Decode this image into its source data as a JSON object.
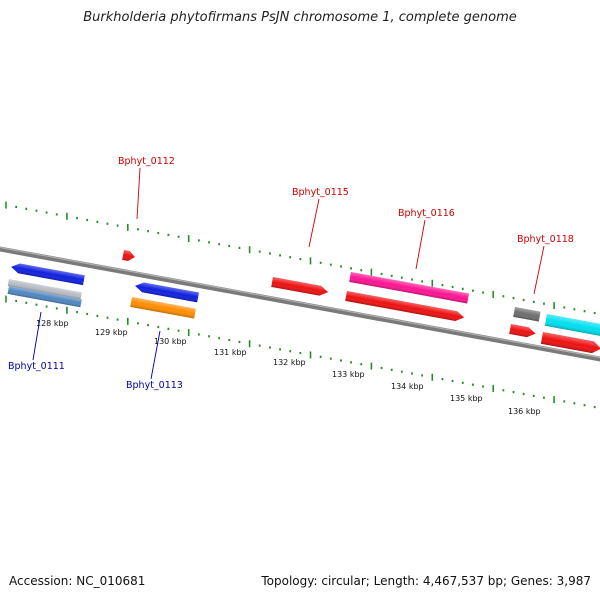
{
  "title": "Burkholderia phytofirmans PsJN chromosome 1, complete genome",
  "footer": {
    "accession": "Accession: NC_010681",
    "topology": "Topology: circular; Length: 4,467,537 bp; Genes: 3,987"
  },
  "colors": {
    "backbone": "#7a7a7a",
    "tick": "#2a8a2a",
    "label_top": "#cc0000",
    "label_bottom": "#0000aa"
  },
  "scale": {
    "labels": [
      "128 kbp",
      "129 kbp",
      "130 kbp",
      "131 kbp",
      "132 kbp",
      "133 kbp",
      "134 kbp",
      "135 kbp",
      "136 kbp"
    ]
  },
  "gene_labels": [
    {
      "text": "Bphyt_0112",
      "strand": "top",
      "color": "#cc0000"
    },
    {
      "text": "Bphyt_0115",
      "strand": "top",
      "color": "#cc0000"
    },
    {
      "text": "Bphyt_0116",
      "strand": "top",
      "color": "#cc0000"
    },
    {
      "text": "Bphyt_0118",
      "strand": "top",
      "color": "#cc0000"
    },
    {
      "text": "Bphyt_0111",
      "strand": "bottom",
      "color": "#0000aa"
    },
    {
      "text": "Bphyt_0113",
      "strand": "bottom",
      "color": "#0000aa"
    }
  ],
  "features": [
    {
      "name": "gene-0111-blue",
      "color": "#1020e0",
      "dir": "left"
    },
    {
      "name": "gene-0111-gray",
      "color": "#b8bcc4",
      "dir": "none"
    },
    {
      "name": "gene-0111-steel",
      "color": "#4f86c0",
      "dir": "none"
    },
    {
      "name": "gene-0112-red",
      "color": "#ee1111",
      "dir": "right"
    },
    {
      "name": "gene-0113-blue",
      "color": "#1020e0",
      "dir": "left"
    },
    {
      "name": "gene-0113-orange",
      "color": "#ff8c00",
      "dir": "none"
    },
    {
      "name": "gene-0115-red",
      "color": "#ee1111",
      "dir": "right"
    },
    {
      "name": "gene-0116-magenta",
      "color": "#ff1493",
      "dir": "none"
    },
    {
      "name": "gene-0116-red",
      "color": "#ee1111",
      "dir": "right"
    },
    {
      "name": "gene-0117-gray",
      "color": "#6e6e6e",
      "dir": "none"
    },
    {
      "name": "gene-0117-red",
      "color": "#ee1111",
      "dir": "right"
    },
    {
      "name": "gene-0118-cyan",
      "color": "#00e0f0",
      "dir": "none"
    },
    {
      "name": "gene-0118-red",
      "color": "#ee1111",
      "dir": "right"
    }
  ]
}
